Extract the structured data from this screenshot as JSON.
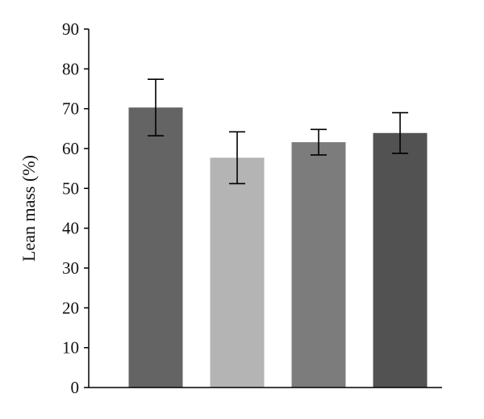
{
  "chart_data": {
    "type": "bar",
    "categories": [
      "",
      "",
      "",
      ""
    ],
    "values": [
      70.3,
      57.7,
      61.6,
      63.9
    ],
    "errors": [
      7.1,
      6.5,
      3.2,
      5.1
    ],
    "colors": [
      "#646464",
      "#b4b4b4",
      "#7c7c7c",
      "#525252"
    ],
    "title": "",
    "xlabel": "",
    "ylabel": "Lean mass (%)",
    "ylim": [
      0,
      90
    ],
    "yticks": [
      "0",
      "10",
      "20",
      "30",
      "40",
      "50",
      "60",
      "70",
      "80",
      "90"
    ],
    "grid": false,
    "legend": "none"
  }
}
